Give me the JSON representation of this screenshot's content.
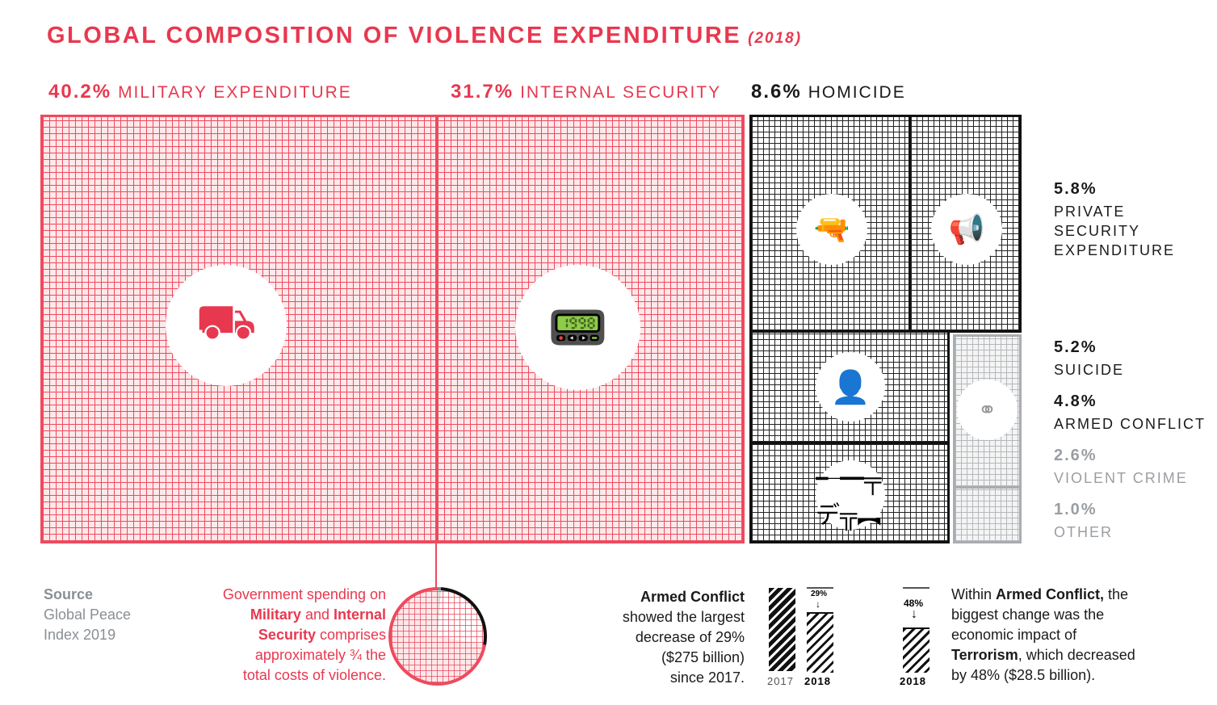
{
  "title": {
    "main": "GLOBAL COMPOSITION OF VIOLENCE EXPENDITURE",
    "year": "(2018)"
  },
  "chart_data": {
    "type": "treemap",
    "title": "GLOBAL COMPOSITION OF VIOLENCE EXPENDITURE (2018)",
    "categories": [
      "Military expenditure",
      "Internal security",
      "Homicide",
      "Private security expenditure",
      "Suicide",
      "Armed conflict",
      "Violent crime",
      "Other"
    ],
    "values": [
      40.2,
      31.7,
      8.6,
      5.8,
      5.2,
      4.8,
      2.6,
      1.0
    ],
    "unit": "%"
  },
  "labels": {
    "military": {
      "pct": "40.2%",
      "name": "MILITARY EXPENDITURE"
    },
    "internal": {
      "pct": "31.7%",
      "name": "INTERNAL SECURITY"
    },
    "homicide": {
      "pct": "8.6%",
      "name": "HOMICIDE"
    },
    "private": {
      "pct": "5.8%",
      "name1": "PRIVATE",
      "name2": "SECURITY",
      "name3": "EXPENDITURE"
    },
    "suicide": {
      "pct": "5.2%",
      "name": "SUICIDE"
    },
    "armed": {
      "pct": "4.8%",
      "name": "ARMED CONFLICT"
    },
    "violent": {
      "pct": "2.6%",
      "name": "VIOLENT CRIME"
    },
    "other": {
      "pct": "1.0%",
      "name": "OTHER"
    }
  },
  "icons": [
    "tank-icon",
    "walkie-talkie-icon",
    "revolver-icon",
    "megaphone-icon",
    "person-icon",
    "rifle-icon",
    "brass-knuckles-icon"
  ],
  "source": {
    "label": "Source",
    "line1": "Global Peace",
    "line2": "Index 2019"
  },
  "pie_note": {
    "l1": "Government spending on",
    "l2a": "Military",
    "l2b": " and ",
    "l2c": "Internal",
    "l3a": "Security",
    "l3b": " comprises",
    "l4": "approximately ¾ the",
    "l5": "total costs of violence."
  },
  "armed_note": {
    "l1": "Armed Conflict",
    "l2": "showed the largest",
    "l3": "decrease of 29%",
    "l4": "($275 billion)",
    "l5": "since 2017."
  },
  "armed_bars": {
    "y2017": "2017",
    "y2018": "2018",
    "change": "29%"
  },
  "terror_bars": {
    "y2018": "2018",
    "change": "48%"
  },
  "terror_note": {
    "l1a": "Within ",
    "l1b": "Armed Conflict,",
    "l1c": " the",
    "l2": "biggest change was the",
    "l3": "economic impact of",
    "l4a": "Terrorism",
    "l4b": ", which decreased",
    "l5": "by 48% ($28.5 billion)."
  },
  "colors": {
    "red": "#e8384f",
    "black": "#111111",
    "gray": "#a9adb1"
  }
}
